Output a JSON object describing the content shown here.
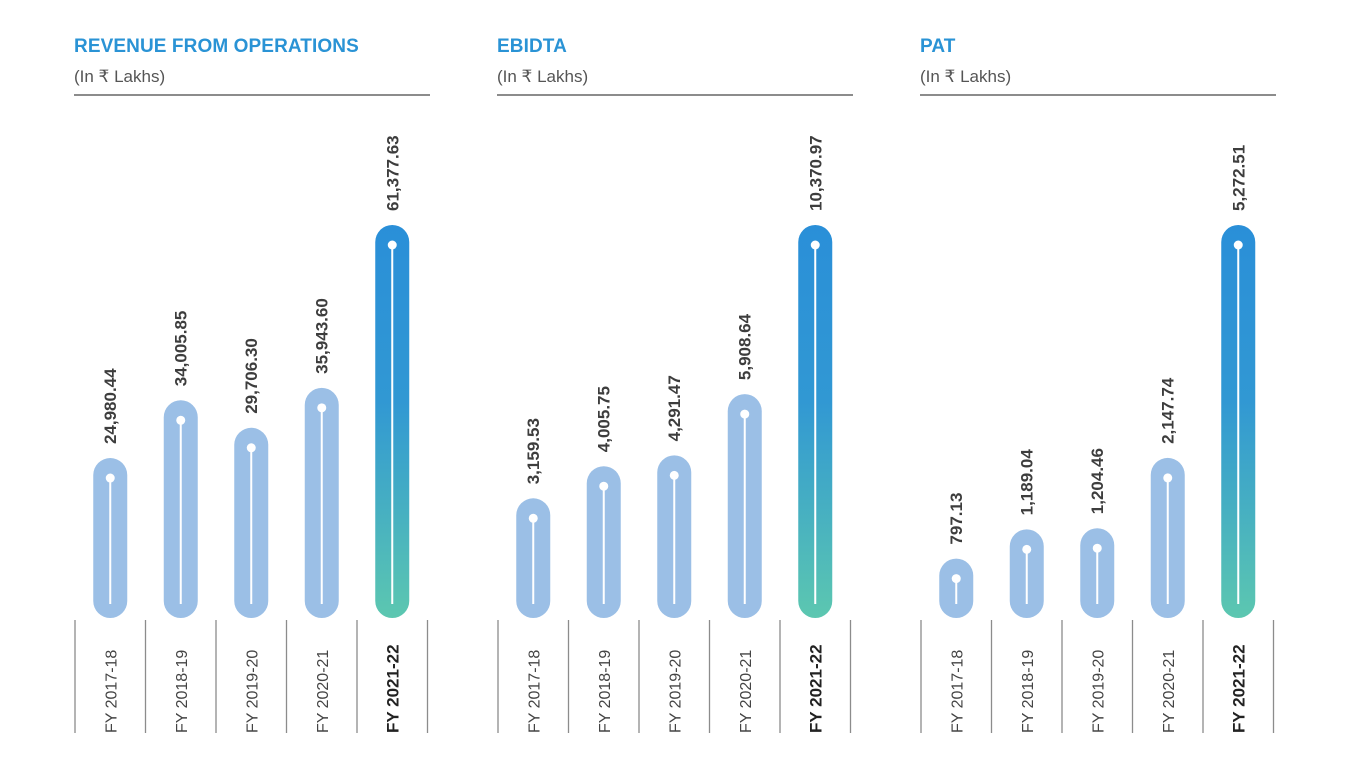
{
  "colors": {
    "title": "#2a93d5",
    "bar": "#9bbfe6",
    "highlight_top": "#2a8fd8",
    "highlight_bottom": "#5cc7b0",
    "marker": "#ffffff",
    "rule": "#8c8c8c"
  },
  "chart_data": [
    {
      "type": "bar",
      "title": "REVENUE FROM OPERATIONS",
      "subtitle": "(In ₹ Lakhs)",
      "categories": [
        "FY 2017-18",
        "FY 2018-19",
        "FY 2019-20",
        "FY 2020-21",
        "FY 2021-22"
      ],
      "values": [
        24980.44,
        34005.85,
        29706.3,
        35943.6,
        61377.63
      ],
      "value_labels": [
        "24,980.44",
        "34,005.85",
        "29,706.30",
        "35,943.60",
        "61,377.63"
      ],
      "highlight_index": 4,
      "ylim": [
        0,
        61377.63
      ]
    },
    {
      "type": "bar",
      "title": "EBIDTA",
      "subtitle": "(In ₹ Lakhs)",
      "categories": [
        "FY 2017-18",
        "FY 2018-19",
        "FY 2019-20",
        "FY 2020-21",
        "FY 2021-22"
      ],
      "values": [
        3159.53,
        4005.75,
        4291.47,
        5908.64,
        10370.97
      ],
      "value_labels": [
        "3,159.53",
        "4,005.75",
        "4,291.47",
        "5,908.64",
        "10,370.97"
      ],
      "highlight_index": 4,
      "ylim": [
        0,
        10370.97
      ]
    },
    {
      "type": "bar",
      "title": "PAT",
      "subtitle": "(In ₹ Lakhs)",
      "categories": [
        "FY 2017-18",
        "FY 2018-19",
        "FY 2019-20",
        "FY 2020-21",
        "FY 2021-22"
      ],
      "values": [
        797.13,
        1189.04,
        1204.46,
        2147.74,
        5272.51
      ],
      "value_labels": [
        "797.13",
        "1,189.04",
        "1,204.46",
        "2,147.74",
        "5,272.51"
      ],
      "highlight_index": 4,
      "ylim": [
        0,
        5272.51
      ]
    }
  ]
}
